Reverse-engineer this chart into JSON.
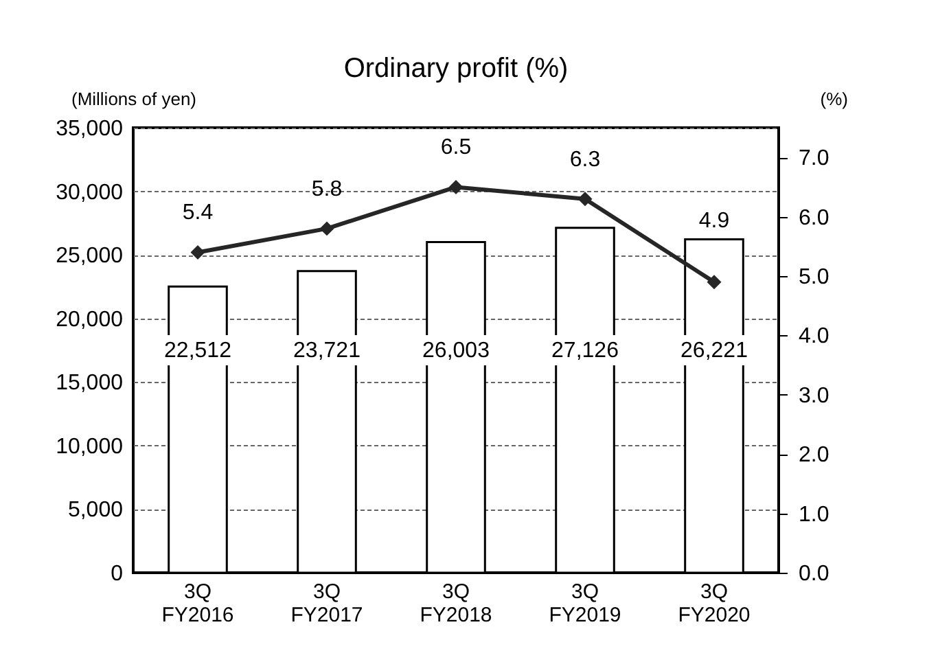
{
  "chart_data": {
    "type": "bar",
    "title": "Ordinary profit (%)",
    "ylabel": "(Millions of yen)",
    "y2label": "(%)",
    "categories": [
      "3Q FY2016",
      "3Q FY2017",
      "3Q FY2018",
      "3Q FY2019",
      "3Q FY2020"
    ],
    "series": [
      {
        "color": "#ffffff",
        "values": [
          22512,
          23721,
          26003,
          27126,
          26221
        ],
        "value_labels": [
          "22,512",
          "23,721",
          "26,003",
          "27,126",
          "26,221"
        ]
      },
      {
        "type": "line",
        "axis": "y2",
        "color": "#262626",
        "marker": "diamond",
        "values": [
          5.4,
          5.8,
          6.5,
          6.3,
          4.9
        ]
      }
    ],
    "data_labels": true,
    "ylim": [
      0,
      35000
    ],
    "yticks": [
      0,
      {
        "value": 5000,
        "label": "5,000"
      },
      {
        "value": 10000,
        "label": "10,000"
      },
      {
        "value": 15000,
        "label": "15,000"
      },
      {
        "value": 20000,
        "label": "20,000"
      },
      {
        "value": 25000,
        "label": "25,000"
      },
      {
        "value": 30000,
        "label": "30,000"
      },
      {
        "value": 35000,
        "label": "35,000"
      }
    ],
    "y2lim": [
      0,
      7.5
    ],
    "y2ticks": [
      {
        "value": 0,
        "label": "0.0"
      },
      {
        "value": 1,
        "label": "1.0"
      },
      {
        "value": 2,
        "label": "2.0"
      },
      {
        "value": 3,
        "label": "3.0"
      },
      {
        "value": 4,
        "label": "4.0"
      },
      {
        "value": 5,
        "label": "5.0"
      },
      {
        "value": 6,
        "label": "6.0"
      },
      {
        "value": 7,
        "label": "7.0"
      }
    ],
    "grid": "y"
  }
}
